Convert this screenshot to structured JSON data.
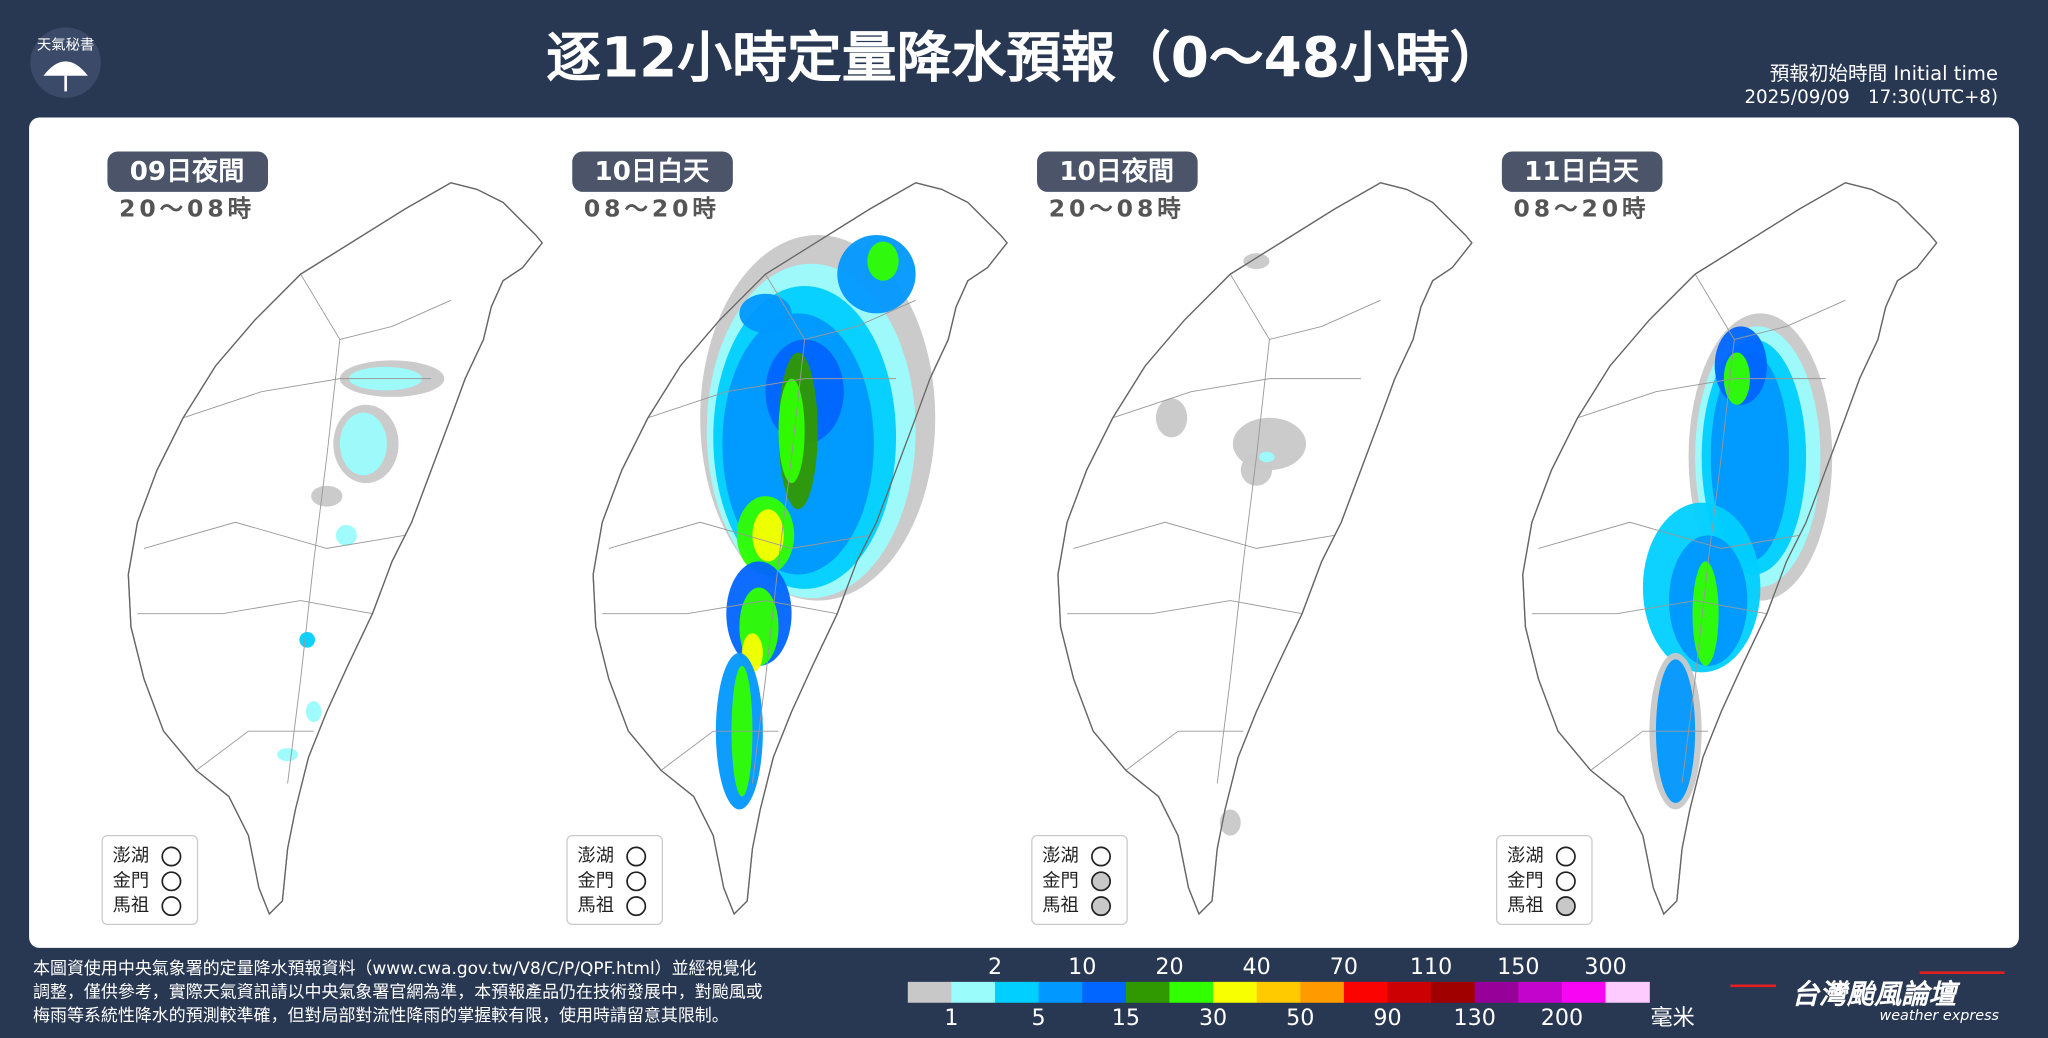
{
  "header": {
    "logo": "天氣秘書",
    "title": "逐12小時定量降水預報（0～48小時）",
    "initial_time_label": "預報初始時間 Initial time",
    "initial_time": "2025/09/09　17:30(UTC+8)"
  },
  "panels": [
    {
      "title": "09日夜間",
      "hours": "20～08時",
      "islands": [
        "澎湖",
        "金門",
        "馬祖"
      ],
      "island_colors": [
        "#ffffff",
        "#ffffff",
        "#ffffff"
      ]
    },
    {
      "title": "10日白天",
      "hours": "08～20時",
      "islands": [
        "澎湖",
        "金門",
        "馬祖"
      ],
      "island_colors": [
        "#ffffff",
        "#ffffff",
        "#ffffff"
      ]
    },
    {
      "title": "10日夜間",
      "hours": "20～08時",
      "islands": [
        "澎湖",
        "金門",
        "馬祖"
      ],
      "island_colors": [
        "#ffffff",
        "#c8c8c8",
        "#c8c8c8"
      ]
    },
    {
      "title": "11日白天",
      "hours": "08～20時",
      "islands": [
        "澎湖",
        "金門",
        "馬祖"
      ],
      "island_colors": [
        "#ffffff",
        "#ffffff",
        "#c8c8c8"
      ]
    }
  ],
  "footer": {
    "note": [
      "本圖資使用中央氣象署的定量降水預報資料（www.cwa.gov.tw/V8/C/P/QPF.html）並經視覺化",
      "調整，僅供參考，實際天氣資訊請以中央氣象署官網為準，本預報產品仍在技術發展中，對颱風或",
      "梅雨等系統性降水的預測較準確，但對局部對流性降雨的掌握較有限，使用時請留意其限制。"
    ]
  },
  "legend": {
    "labels": [
      "1",
      "2",
      "5",
      "10",
      "15",
      "20",
      "30",
      "40",
      "50",
      "70",
      "90",
      "110",
      "130",
      "150",
      "200",
      "300"
    ],
    "colors": [
      "#c8c8c8",
      "#9bfcfc",
      "#00cfff",
      "#0198ff",
      "#0165ff",
      "#309901",
      "#32ff00",
      "#f8ff00",
      "#ffcb00",
      "#ff9a00",
      "#fa0300",
      "#cc0003",
      "#a00000",
      "#98009a",
      "#c304cc",
      "#f805f3",
      "#fecbff"
    ],
    "unit": "毫米"
  },
  "brand": {
    "name": "台灣颱風論壇",
    "tagline": "weather express"
  }
}
